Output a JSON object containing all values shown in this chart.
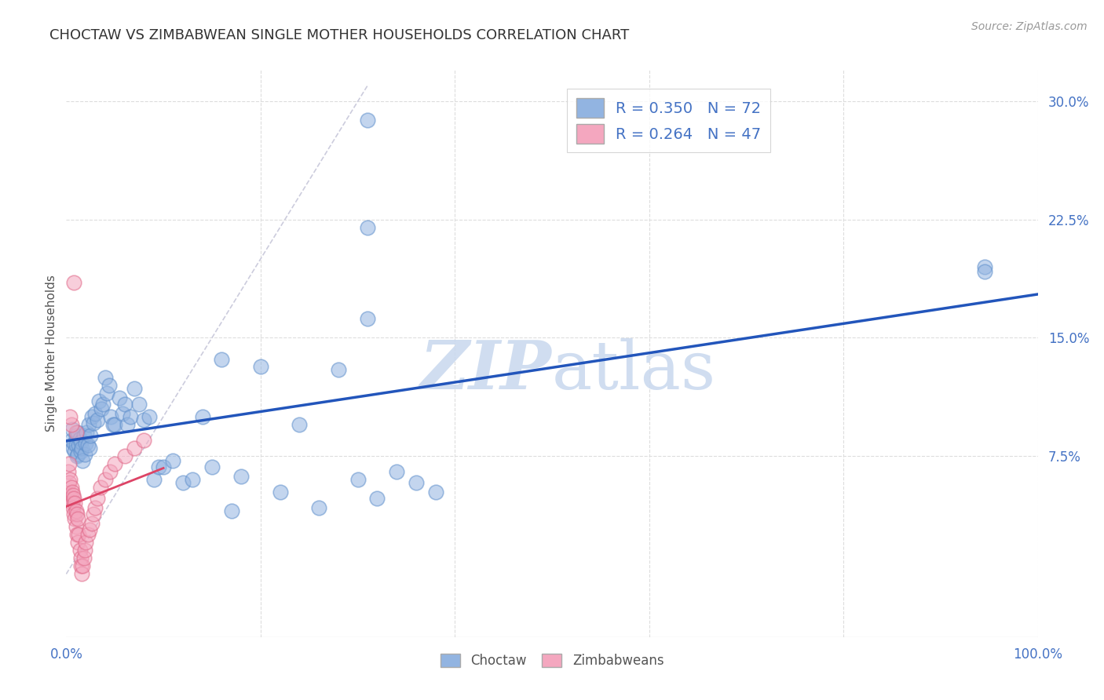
{
  "title": "CHOCTAW VS ZIMBABWEAN SINGLE MOTHER HOUSEHOLDS CORRELATION CHART",
  "source": "Source: ZipAtlas.com",
  "ylabel": "Single Mother Households",
  "choctaw_color": "#92b4e1",
  "zimbabwean_color": "#f4a7bf",
  "choctaw_edge_color": "#6090cc",
  "zimbabwean_edge_color": "#e06888",
  "choctaw_line_color": "#2255bb",
  "zimbabwean_line_color": "#dd4466",
  "diagonal_color": "#ccccdd",
  "grid_color": "#dddddd",
  "legend_r_choctaw": "R = 0.350",
  "legend_n_choctaw": "N = 72",
  "legend_r_zimbabwean": "R = 0.264",
  "legend_n_zimbabwean": "N = 47",
  "xlim": [
    0.0,
    1.0
  ],
  "ylim": [
    -0.04,
    0.32
  ],
  "ytick_vals": [
    0.075,
    0.15,
    0.225,
    0.3
  ],
  "ytick_labels": [
    "7.5%",
    "15.0%",
    "22.5%",
    "30.0%"
  ],
  "choctaw_x": [
    0.005,
    0.006,
    0.007,
    0.008,
    0.009,
    0.01,
    0.01,
    0.011,
    0.012,
    0.012,
    0.013,
    0.014,
    0.015,
    0.015,
    0.016,
    0.017,
    0.018,
    0.019,
    0.02,
    0.021,
    0.022,
    0.023,
    0.024,
    0.025,
    0.026,
    0.028,
    0.03,
    0.032,
    0.034,
    0.036,
    0.038,
    0.04,
    0.042,
    0.044,
    0.046,
    0.048,
    0.05,
    0.055,
    0.058,
    0.06,
    0.063,
    0.066,
    0.07,
    0.075,
    0.08,
    0.085,
    0.09,
    0.095,
    0.1,
    0.11,
    0.12,
    0.13,
    0.14,
    0.15,
    0.16,
    0.17,
    0.18,
    0.2,
    0.22,
    0.24,
    0.26,
    0.28,
    0.3,
    0.32,
    0.34,
    0.36,
    0.38,
    0.31,
    0.31,
    0.31,
    0.945,
    0.945
  ],
  "choctaw_y": [
    0.085,
    0.092,
    0.08,
    0.083,
    0.078,
    0.088,
    0.082,
    0.075,
    0.09,
    0.076,
    0.082,
    0.086,
    0.078,
    0.084,
    0.08,
    0.072,
    0.088,
    0.076,
    0.083,
    0.09,
    0.082,
    0.095,
    0.08,
    0.088,
    0.1,
    0.096,
    0.102,
    0.098,
    0.11,
    0.105,
    0.108,
    0.125,
    0.115,
    0.12,
    0.1,
    0.095,
    0.095,
    0.112,
    0.102,
    0.108,
    0.095,
    0.1,
    0.118,
    0.108,
    0.098,
    0.1,
    0.06,
    0.068,
    0.068,
    0.072,
    0.058,
    0.06,
    0.1,
    0.068,
    0.136,
    0.04,
    0.062,
    0.132,
    0.052,
    0.095,
    0.042,
    0.13,
    0.06,
    0.048,
    0.065,
    0.058,
    0.052,
    0.288,
    0.22,
    0.162,
    0.195,
    0.192
  ],
  "zimbabwean_x": [
    0.002,
    0.003,
    0.003,
    0.004,
    0.004,
    0.005,
    0.005,
    0.006,
    0.006,
    0.007,
    0.007,
    0.008,
    0.008,
    0.009,
    0.009,
    0.01,
    0.01,
    0.011,
    0.011,
    0.012,
    0.012,
    0.013,
    0.014,
    0.015,
    0.015,
    0.016,
    0.017,
    0.018,
    0.019,
    0.02,
    0.022,
    0.024,
    0.026,
    0.028,
    0.03,
    0.032,
    0.035,
    0.04,
    0.045,
    0.05,
    0.06,
    0.07,
    0.08,
    0.01,
    0.005,
    0.004,
    0.008
  ],
  "zimbabwean_y": [
    0.065,
    0.07,
    0.058,
    0.06,
    0.05,
    0.055,
    0.048,
    0.052,
    0.045,
    0.05,
    0.042,
    0.048,
    0.038,
    0.045,
    0.035,
    0.04,
    0.03,
    0.038,
    0.025,
    0.035,
    0.02,
    0.025,
    0.015,
    0.01,
    0.005,
    0.0,
    0.005,
    0.01,
    0.015,
    0.02,
    0.025,
    0.028,
    0.032,
    0.038,
    0.042,
    0.048,
    0.055,
    0.06,
    0.065,
    0.07,
    0.075,
    0.08,
    0.085,
    0.09,
    0.095,
    0.1,
    0.185
  ]
}
